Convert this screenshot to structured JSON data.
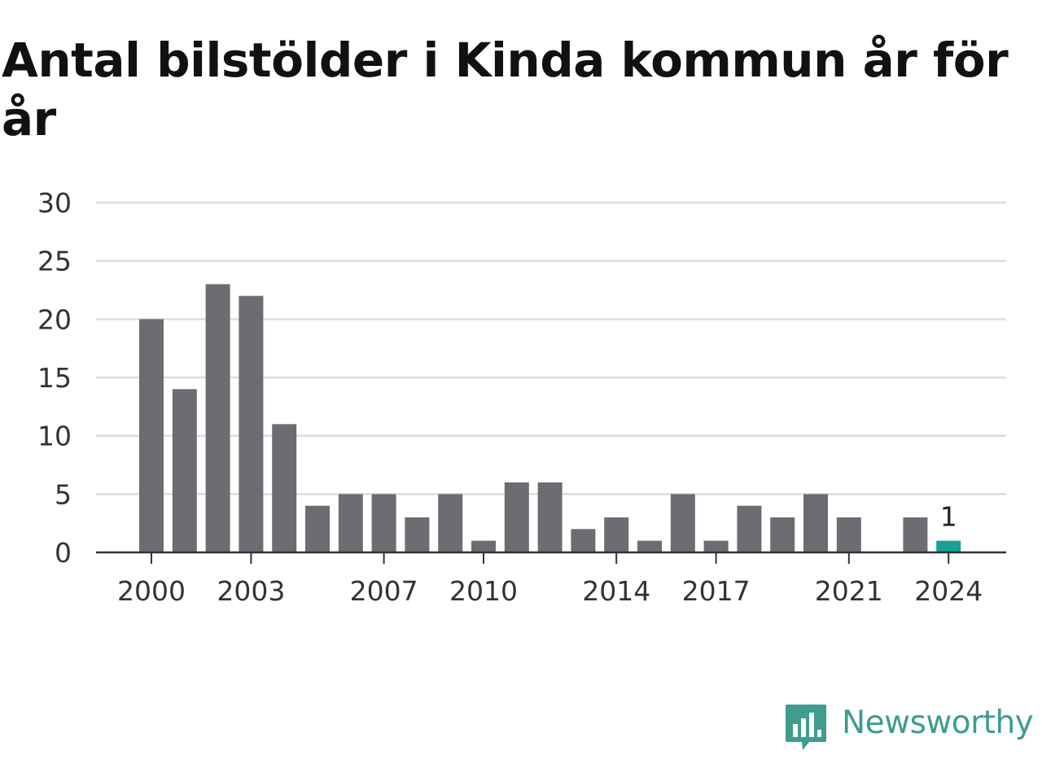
{
  "title": "Antal bilstölder i Kinda kommun år för år",
  "brand": {
    "name": "Newsworthy",
    "logo_icon": "bar-chart-speech-bubble-icon",
    "color": "#3f9c8f"
  },
  "colors": {
    "bar": "#6d6c72",
    "highlight": "#14a396",
    "grid": "#dddddd",
    "axis": "#333333",
    "text": "#333333"
  },
  "chart_data": {
    "type": "bar",
    "title": "Antal bilstölder i Kinda kommun år för år",
    "xlabel": "",
    "ylabel": "",
    "categories": [
      2000,
      2001,
      2002,
      2003,
      2004,
      2005,
      2006,
      2007,
      2008,
      2009,
      2010,
      2011,
      2012,
      2013,
      2014,
      2015,
      2016,
      2017,
      2018,
      2019,
      2020,
      2021,
      2022,
      2023,
      2024
    ],
    "values": [
      20,
      14,
      23,
      22,
      11,
      4,
      5,
      5,
      3,
      5,
      1,
      6,
      6,
      2,
      3,
      1,
      5,
      1,
      4,
      3,
      5,
      3,
      0,
      3,
      1
    ],
    "x_tick_labels": [
      "2000",
      "2003",
      "2007",
      "2010",
      "2014",
      "2017",
      "2021",
      "2024"
    ],
    "y_ticks": [
      0,
      5,
      10,
      15,
      20,
      25,
      30
    ],
    "ylim": [
      0,
      30
    ],
    "grid": true,
    "highlight_category": 2024,
    "data_labels": [
      {
        "category": 2024,
        "text": "1"
      }
    ]
  }
}
